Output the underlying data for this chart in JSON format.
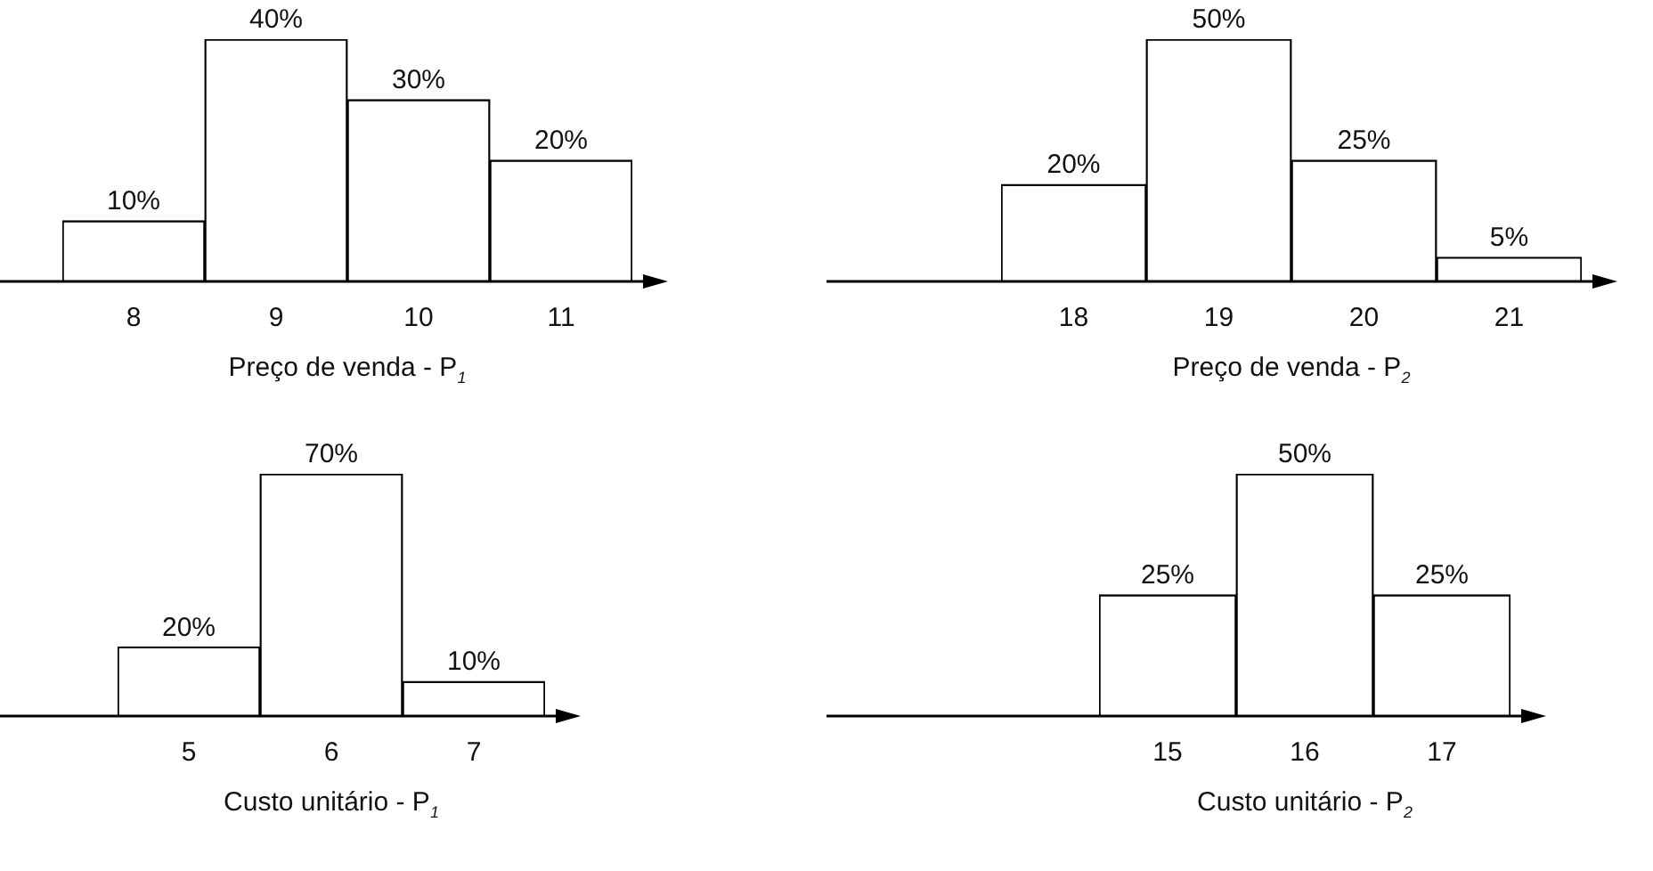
{
  "chart_data": [
    {
      "type": "bar",
      "categories": [
        "8",
        "9",
        "10",
        "11"
      ],
      "values": [
        10,
        40,
        30,
        20
      ],
      "color": "#ffffff",
      "value_labels": [
        "10%",
        "40%",
        "30%",
        "20%"
      ],
      "xlabel": "Preço de venda - P$_{1}$",
      "grid": false,
      "legend": false,
      "tick_labels": "x"
    },
    {
      "type": "bar",
      "categories": [
        "18",
        "19",
        "20",
        "21"
      ],
      "values": [
        20,
        50,
        25,
        5
      ],
      "color": "#ffffff",
      "value_labels": [
        "20%",
        "50%",
        "25%",
        "5%"
      ],
      "xlabel": "Preço de venda - P$_{2}$",
      "grid": false,
      "legend": false,
      "tick_labels": "x"
    },
    {
      "type": "bar",
      "categories": [
        "5",
        "6",
        "7"
      ],
      "values": [
        20,
        70,
        10
      ],
      "color": "#ffffff",
      "value_labels": [
        "20%",
        "70%",
        "10%"
      ],
      "xlabel": "Custo unitário - P$_{1}$",
      "grid": false,
      "legend": false,
      "tick_labels": "x"
    },
    {
      "type": "bar",
      "categories": [
        "15",
        "16",
        "17"
      ],
      "values": [
        25,
        50,
        25
      ],
      "color": "#ffffff",
      "value_labels": [
        "25%",
        "50%",
        "25%"
      ],
      "xlabel": "Custo unitário - P$_{2}$",
      "grid": false,
      "legend": false,
      "tick_labels": "x"
    }
  ]
}
